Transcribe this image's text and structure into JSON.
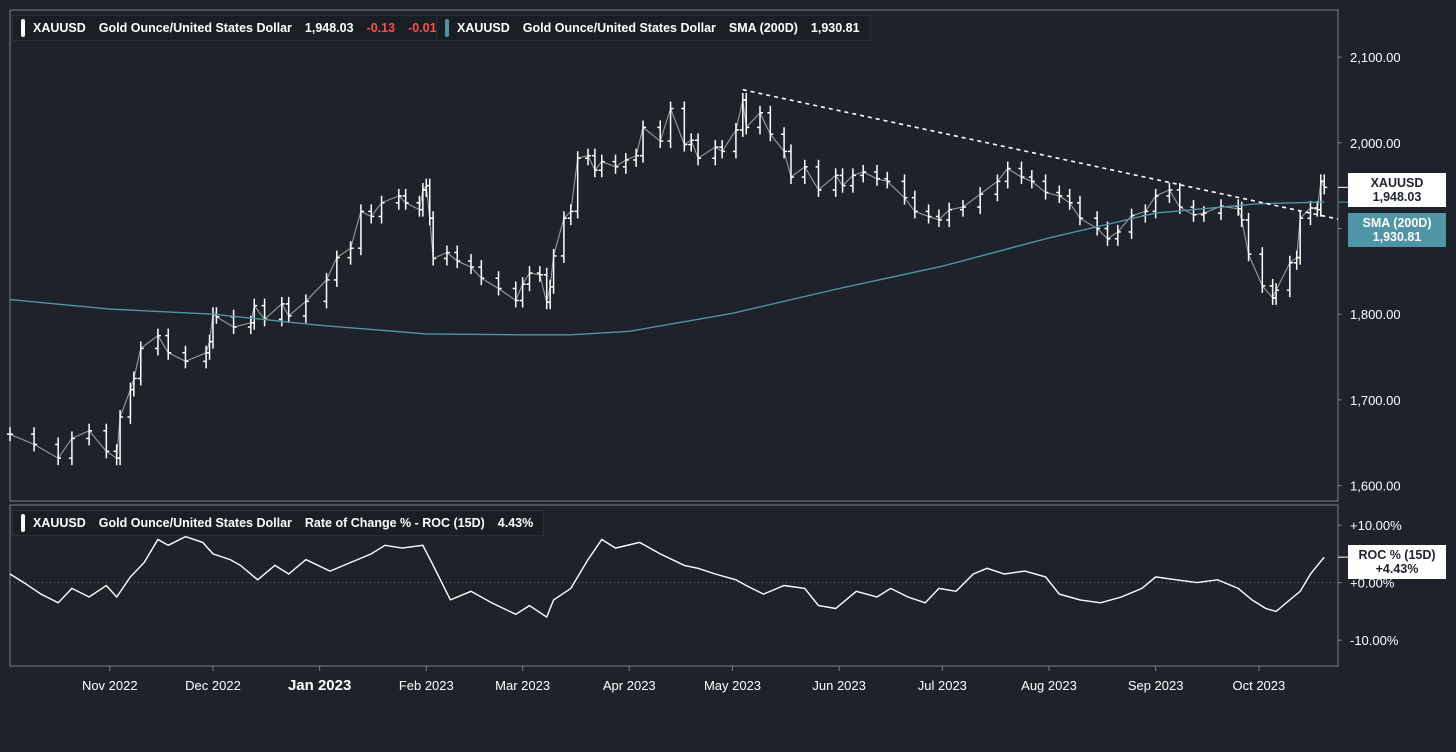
{
  "colors": {
    "background": "#1e232b",
    "price": "#ffffff",
    "sma": "#4f95a6",
    "negative": "#ff4d4d",
    "frame": "#7a828c"
  },
  "legend_price": {
    "symbol": "XAUUSD",
    "name": "Gold Ounce/United States Dollar",
    "price": "1,948.03",
    "change": "-0.13",
    "change_pct": "-0.01",
    "pct_sign": "%"
  },
  "legend_sma": {
    "symbol": "XAUUSD",
    "name": "Gold Ounce/United States Dollar",
    "indicator": "SMA (200D)",
    "value": "1,930.81"
  },
  "legend_roc": {
    "symbol": "XAUUSD",
    "name": "Gold Ounce/United States Dollar",
    "indicator": "Rate of Change % - ROC (15D)",
    "value": "4.43%"
  },
  "tags": {
    "price_name": "XAUUSD",
    "price_value": "1,948.03",
    "sma_name": "SMA (200D)",
    "sma_value": "1,930.81",
    "roc_name": "ROC % (15D)",
    "roc_value": "+4.43%"
  },
  "chart_data": {
    "type": "line",
    "price_axis": {
      "ticks": [
        1600,
        1700,
        1800,
        1900,
        2000,
        2100
      ],
      "tick_labels": [
        "1,600.00",
        "1,700.00",
        "1,800.00",
        "",
        "2,000.00",
        "2,100.00"
      ],
      "ylim": [
        1582,
        2155
      ]
    },
    "roc_axis": {
      "ticks": [
        -10,
        0,
        10
      ],
      "tick_labels": [
        "-10.00%",
        "+0.00%",
        "+10.00%"
      ],
      "ylim": [
        -14.5,
        13.5
      ]
    },
    "x_axis": {
      "labels": [
        "Nov 2022",
        "Dec 2022",
        "Jan 2023",
        "Feb 2023",
        "Mar 2023",
        "Apr 2023",
        "May 2023",
        "Jun 2023",
        "Jul 2023",
        "Aug 2023",
        "Sep 2023",
        "Oct 2023"
      ],
      "label_dates": [
        "2022-11-01",
        "2022-12-01",
        "2023-01-01",
        "2023-02-01",
        "2023-03-01",
        "2023-04-01",
        "2023-05-01",
        "2023-06-01",
        "2023-07-01",
        "2023-08-01",
        "2023-09-01",
        "2023-10-01"
      ],
      "xlim": [
        "2022-10-03",
        "2023-10-24"
      ]
    },
    "series": [
      {
        "name": "XAUUSD",
        "style": "ohlc-bars",
        "points": [
          [
            "2022-10-03",
            1660
          ],
          [
            "2022-10-10",
            1648
          ],
          [
            "2022-10-17",
            1632
          ],
          [
            "2022-10-21",
            1655
          ],
          [
            "2022-10-26",
            1664
          ],
          [
            "2022-10-31",
            1640
          ],
          [
            "2022-11-03",
            1632
          ],
          [
            "2022-11-04",
            1680
          ],
          [
            "2022-11-07",
            1712
          ],
          [
            "2022-11-08",
            1725
          ],
          [
            "2022-11-10",
            1760
          ],
          [
            "2022-11-15",
            1775
          ],
          [
            "2022-11-18",
            1755
          ],
          [
            "2022-11-23",
            1745
          ],
          [
            "2022-11-29",
            1755
          ],
          [
            "2022-11-30",
            1768
          ],
          [
            "2022-12-01",
            1800
          ],
          [
            "2022-12-02",
            1797
          ],
          [
            "2022-12-07",
            1785
          ],
          [
            "2022-12-12",
            1790
          ],
          [
            "2022-12-13",
            1810
          ],
          [
            "2022-12-16",
            1794
          ],
          [
            "2022-12-21",
            1812
          ],
          [
            "2022-12-23",
            1798
          ],
          [
            "2022-12-28",
            1815
          ],
          [
            "2023-01-03",
            1840
          ],
          [
            "2023-01-06",
            1866
          ],
          [
            "2023-01-10",
            1877
          ],
          [
            "2023-01-13",
            1920
          ],
          [
            "2023-01-16",
            1914
          ],
          [
            "2023-01-19",
            1930
          ],
          [
            "2023-01-24",
            1938
          ],
          [
            "2023-01-26",
            1930
          ],
          [
            "2023-01-30",
            1922
          ],
          [
            "2023-01-31",
            1945
          ],
          [
            "2023-02-01",
            1950
          ],
          [
            "2023-02-02",
            1912
          ],
          [
            "2023-02-03",
            1865
          ],
          [
            "2023-02-07",
            1872
          ],
          [
            "2023-02-10",
            1862
          ],
          [
            "2023-02-14",
            1855
          ],
          [
            "2023-02-17",
            1842
          ],
          [
            "2023-02-22",
            1830
          ],
          [
            "2023-02-27",
            1816
          ],
          [
            "2023-03-01",
            1835
          ],
          [
            "2023-03-03",
            1848
          ],
          [
            "2023-03-06",
            1846
          ],
          [
            "2023-03-08",
            1814
          ],
          [
            "2023-03-09",
            1832
          ],
          [
            "2023-03-10",
            1868
          ],
          [
            "2023-03-13",
            1912
          ],
          [
            "2023-03-15",
            1920
          ],
          [
            "2023-03-17",
            1982
          ],
          [
            "2023-03-20",
            1985
          ],
          [
            "2023-03-22",
            1968
          ],
          [
            "2023-03-24",
            1978
          ],
          [
            "2023-03-28",
            1972
          ],
          [
            "2023-03-31",
            1980
          ],
          [
            "2023-04-03",
            1985
          ],
          [
            "2023-04-05",
            2018
          ],
          [
            "2023-04-10",
            2002
          ],
          [
            "2023-04-13",
            2040
          ],
          [
            "2023-04-17",
            1998
          ],
          [
            "2023-04-19",
            2003
          ],
          [
            "2023-04-21",
            1982
          ],
          [
            "2023-04-26",
            1995
          ],
          [
            "2023-04-28",
            1990
          ],
          [
            "2023-05-02",
            2015
          ],
          [
            "2023-05-04",
            2050
          ],
          [
            "2023-05-05",
            2018
          ],
          [
            "2023-05-09",
            2035
          ],
          [
            "2023-05-12",
            2010
          ],
          [
            "2023-05-16",
            1990
          ],
          [
            "2023-05-18",
            1960
          ],
          [
            "2023-05-22",
            1972
          ],
          [
            "2023-05-26",
            1945
          ],
          [
            "2023-05-31",
            1962
          ],
          [
            "2023-06-02",
            1950
          ],
          [
            "2023-06-05",
            1962
          ],
          [
            "2023-06-08",
            1966
          ],
          [
            "2023-06-12",
            1958
          ],
          [
            "2023-06-15",
            1955
          ],
          [
            "2023-06-20",
            1936
          ],
          [
            "2023-06-23",
            1920
          ],
          [
            "2023-06-27",
            1914
          ],
          [
            "2023-06-30",
            1910
          ],
          [
            "2023-07-03",
            1922
          ],
          [
            "2023-07-07",
            1925
          ],
          [
            "2023-07-12",
            1940
          ],
          [
            "2023-07-17",
            1955
          ],
          [
            "2023-07-20",
            1970
          ],
          [
            "2023-07-24",
            1960
          ],
          [
            "2023-07-27",
            1955
          ],
          [
            "2023-07-31",
            1942
          ],
          [
            "2023-08-04",
            1938
          ],
          [
            "2023-08-07",
            1930
          ],
          [
            "2023-08-10",
            1912
          ],
          [
            "2023-08-15",
            1900
          ],
          [
            "2023-08-18",
            1888
          ],
          [
            "2023-08-21",
            1896
          ],
          [
            "2023-08-25",
            1915
          ],
          [
            "2023-08-29",
            1920
          ],
          [
            "2023-09-01",
            1938
          ],
          [
            "2023-09-05",
            1945
          ],
          [
            "2023-09-08",
            1925
          ],
          [
            "2023-09-12",
            1916
          ],
          [
            "2023-09-15",
            1918
          ],
          [
            "2023-09-20",
            1926
          ],
          [
            "2023-09-25",
            1923
          ],
          [
            "2023-09-26",
            1910
          ],
          [
            "2023-09-28",
            1870
          ],
          [
            "2023-10-02",
            1833
          ],
          [
            "2023-10-05",
            1819
          ],
          [
            "2023-10-06",
            1828
          ],
          [
            "2023-10-10",
            1860
          ],
          [
            "2023-10-12",
            1866
          ],
          [
            "2023-10-13",
            1912
          ],
          [
            "2023-10-16",
            1924
          ],
          [
            "2023-10-18",
            1922
          ],
          [
            "2023-10-19",
            1955
          ],
          [
            "2023-10-20",
            1948
          ]
        ]
      },
      {
        "name": "SMA (200D)",
        "style": "line",
        "points": [
          [
            "2022-10-03",
            1817
          ],
          [
            "2022-11-01",
            1806
          ],
          [
            "2022-12-01",
            1800
          ],
          [
            "2023-01-01",
            1787
          ],
          [
            "2023-02-01",
            1777
          ],
          [
            "2023-03-01",
            1776
          ],
          [
            "2023-03-15",
            1776
          ],
          [
            "2023-04-01",
            1780
          ],
          [
            "2023-05-01",
            1801
          ],
          [
            "2023-06-01",
            1830
          ],
          [
            "2023-07-01",
            1856
          ],
          [
            "2023-08-01",
            1889
          ],
          [
            "2023-09-01",
            1918
          ],
          [
            "2023-10-01",
            1929
          ],
          [
            "2023-10-20",
            1930.81
          ]
        ]
      },
      {
        "name": "Trendline",
        "style": "dashed",
        "points": [
          [
            "2023-05-04",
            2062
          ],
          [
            "2023-10-24",
            1911
          ]
        ]
      },
      {
        "name": "ROC (15D)",
        "style": "line",
        "points": [
          [
            "2022-10-03",
            1.5
          ],
          [
            "2022-10-07",
            0
          ],
          [
            "2022-10-12",
            -2
          ],
          [
            "2022-10-17",
            -3.5
          ],
          [
            "2022-10-21",
            -1
          ],
          [
            "2022-10-26",
            -2.5
          ],
          [
            "2022-10-31",
            -0.5
          ],
          [
            "2022-11-03",
            -2.5
          ],
          [
            "2022-11-07",
            1
          ],
          [
            "2022-11-11",
            3.5
          ],
          [
            "2022-11-15",
            7.5
          ],
          [
            "2022-11-18",
            6.5
          ],
          [
            "2022-11-23",
            8
          ],
          [
            "2022-11-28",
            7
          ],
          [
            "2022-12-01",
            5
          ],
          [
            "2022-12-06",
            4
          ],
          [
            "2022-12-09",
            3
          ],
          [
            "2022-12-14",
            0.5
          ],
          [
            "2022-12-19",
            3
          ],
          [
            "2022-12-23",
            1.5
          ],
          [
            "2022-12-28",
            4
          ],
          [
            "2023-01-04",
            2
          ],
          [
            "2023-01-10",
            3.5
          ],
          [
            "2023-01-16",
            5
          ],
          [
            "2023-01-20",
            6.5
          ],
          [
            "2023-01-25",
            6
          ],
          [
            "2023-01-31",
            6.5
          ],
          [
            "2023-02-03",
            3
          ],
          [
            "2023-02-08",
            -3
          ],
          [
            "2023-02-14",
            -1.5
          ],
          [
            "2023-02-20",
            -3.5
          ],
          [
            "2023-02-27",
            -5.5
          ],
          [
            "2023-03-03",
            -4
          ],
          [
            "2023-03-08",
            -6
          ],
          [
            "2023-03-10",
            -3
          ],
          [
            "2023-03-15",
            -1
          ],
          [
            "2023-03-20",
            4
          ],
          [
            "2023-03-24",
            7.5
          ],
          [
            "2023-03-28",
            6
          ],
          [
            "2023-04-04",
            7
          ],
          [
            "2023-04-10",
            5
          ],
          [
            "2023-04-17",
            3
          ],
          [
            "2023-04-21",
            2.5
          ],
          [
            "2023-04-26",
            1.5
          ],
          [
            "2023-05-02",
            0.5
          ],
          [
            "2023-05-05",
            -0.5
          ],
          [
            "2023-05-10",
            -2
          ],
          [
            "2023-05-16",
            -0.5
          ],
          [
            "2023-05-22",
            -1
          ],
          [
            "2023-05-26",
            -4
          ],
          [
            "2023-05-31",
            -4.5
          ],
          [
            "2023-06-06",
            -1.5
          ],
          [
            "2023-06-12",
            -2.5
          ],
          [
            "2023-06-16",
            -1
          ],
          [
            "2023-06-21",
            -2.5
          ],
          [
            "2023-06-26",
            -3.5
          ],
          [
            "2023-06-30",
            -1
          ],
          [
            "2023-07-05",
            -1.5
          ],
          [
            "2023-07-10",
            1.5
          ],
          [
            "2023-07-14",
            2.5
          ],
          [
            "2023-07-19",
            1.5
          ],
          [
            "2023-07-25",
            2
          ],
          [
            "2023-07-31",
            1
          ],
          [
            "2023-08-04",
            -2
          ],
          [
            "2023-08-10",
            -3
          ],
          [
            "2023-08-16",
            -3.5
          ],
          [
            "2023-08-22",
            -2.5
          ],
          [
            "2023-08-28",
            -1
          ],
          [
            "2023-09-01",
            1
          ],
          [
            "2023-09-07",
            0.5
          ],
          [
            "2023-09-13",
            0
          ],
          [
            "2023-09-19",
            0.5
          ],
          [
            "2023-09-25",
            -1
          ],
          [
            "2023-09-29",
            -3
          ],
          [
            "2023-10-03",
            -4.5
          ],
          [
            "2023-10-06",
            -5
          ],
          [
            "2023-10-10",
            -3
          ],
          [
            "2023-10-13",
            -1.5
          ],
          [
            "2023-10-16",
            1.5
          ],
          [
            "2023-10-18",
            3
          ],
          [
            "2023-10-20",
            4.43
          ]
        ]
      }
    ],
    "grid": false,
    "legend": "top-left"
  }
}
